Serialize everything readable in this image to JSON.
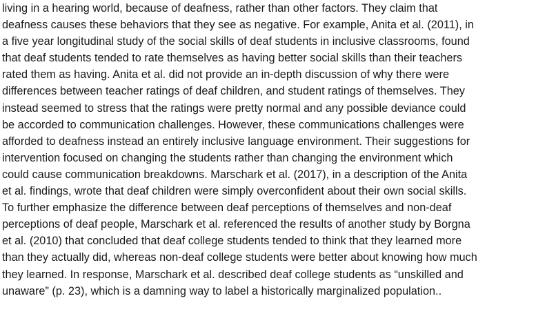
{
  "document": {
    "lines": [
      "living in a hearing world, because of deafness, rather than other factors. They claim that",
      "deafness causes these behaviors that they see as negative. For example, Anita et al. (2011), in",
      "a five year longitudinal study of the social skills of deaf students in inclusive classrooms, found",
      "that deaf students tended to rate themselves as having better social skills than their teachers",
      "rated them as having. Anita et al. did not provide an in-depth discussion of why there were",
      "differences between teacher ratings of deaf children, and student ratings of themselves. They",
      "instead seemed to stress that the ratings were pretty normal and any possible deviance could",
      "be accorded to communication challenges. However, these communications challenges were",
      "afforded to deafness instead an entirely inclusive language environment. Their suggestions for",
      "intervention focused on changing the students rather than changing the environment which",
      "could cause communication breakdowns. Marschark et al. (2017), in a description of the Anita",
      "et al. findings, wrote that deaf children were simply overconfident about their own social skills.",
      "To further emphasize the difference between deaf perceptions of themselves and non-deaf",
      "perceptions of deaf people, Marschark et al. referenced the results of another study by Borgna",
      "et al. (2010) that concluded that deaf college students tended to think that they learned more",
      "than they actually did, whereas non-deaf college students were better about knowing how much",
      "they learned. In response, Marschark et al. described deaf college students as “unskilled and",
      "unaware” (p. 23), which is a damning way to label a historically marginalized population.."
    ]
  }
}
